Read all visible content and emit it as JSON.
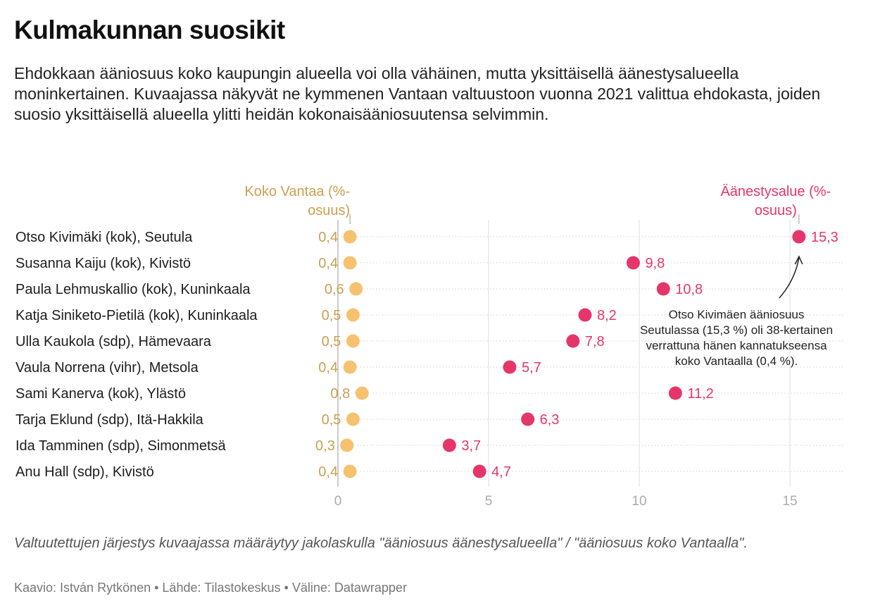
{
  "header": {
    "title": "Kulmakunnan suosikit",
    "subtitle": "Ehdokkaan ääniosuus koko kaupungin alueella voi olla vähäinen, mutta yksittäisellä äänestysalueella moninkertainen. Kuvaajassa näkyvät ne kymmenen Vantaan valtuustoon vuonna 2021 valittua ehdokasta, joiden suosio yksittäisellä alueella ylitti heidän kokonaisääniosuutensa selvimmin."
  },
  "chart_data": {
    "type": "scatter",
    "subtype": "dot-range",
    "categories": [
      "Otso Kivimäki (kok), Seutula",
      "Susanna Kaiju (kok), Kivistö",
      "Paula Lehmuskallio (kok), Kuninkaala",
      "Katja Siniketo-Pietilä (kok), Kuninkaala",
      "Ulla Kaukola (sdp), Hämevaara",
      "Vaula Norrena (vihr), Metsola",
      "Sami Kanerva (kok), Ylästö",
      "Tarja Eklund (sdp), Itä-Hakkila",
      "Ida Tamminen (sdp), Simonmetsä",
      "Anu Hall (sdp), Kivistö"
    ],
    "series": [
      {
        "name": "Koko Vantaa (%-osuus)",
        "color": "#f6c26f",
        "label_color": "#c9a050",
        "values": [
          0.4,
          0.4,
          0.6,
          0.5,
          0.5,
          0.4,
          0.8,
          0.5,
          0.3,
          0.4
        ],
        "labels": [
          "0,4",
          "0,4",
          "0,6",
          "0,5",
          "0,5",
          "0,4",
          "0,8",
          "0,5",
          "0,3",
          "0,4"
        ]
      },
      {
        "name": "Äänestysalue (%-osuus)",
        "color": "#e5366a",
        "label_color": "#e5366a",
        "values": [
          15.3,
          9.8,
          10.8,
          8.2,
          7.8,
          5.7,
          11.2,
          6.3,
          3.7,
          4.7
        ],
        "labels": [
          "15,3",
          "9,8",
          "10,8",
          "8,2",
          "7,8",
          "5,7",
          "11,2",
          "6,3",
          "3,7",
          "4,7"
        ]
      }
    ],
    "legend": {
      "koko_vantaa": [
        "Koko Vantaa (%-",
        "osuus)"
      ],
      "aanestysalue": [
        "Äänestysalue (%-",
        "osuus)"
      ]
    },
    "xaxis": {
      "ticks": [
        0,
        5,
        10,
        15
      ],
      "tick_labels": [
        "0",
        "5",
        "10",
        "15"
      ],
      "xlim": [
        0,
        17
      ]
    },
    "grid": true,
    "annotation": {
      "lines": [
        "Otso Kivimäen ääniosuus",
        "Seutulassa (15,3 %) oli 38-kertainen",
        "verrattuna hänen kannatukseensa",
        "koko Vantaalla (0,4 %)."
      ]
    }
  },
  "footer": {
    "note": "Valtuutettujen järjestys kuvaajassa määräytyy jakolaskulla \"ääniosuus äänestysalueella\" / \"ääniosuus koko Vantaalla\".",
    "credit": "Kaavio: István Rytkönen",
    "source": "Lähde: Tilastokeskus",
    "tool": "Väline: Datawrapper",
    "separator": "•"
  }
}
